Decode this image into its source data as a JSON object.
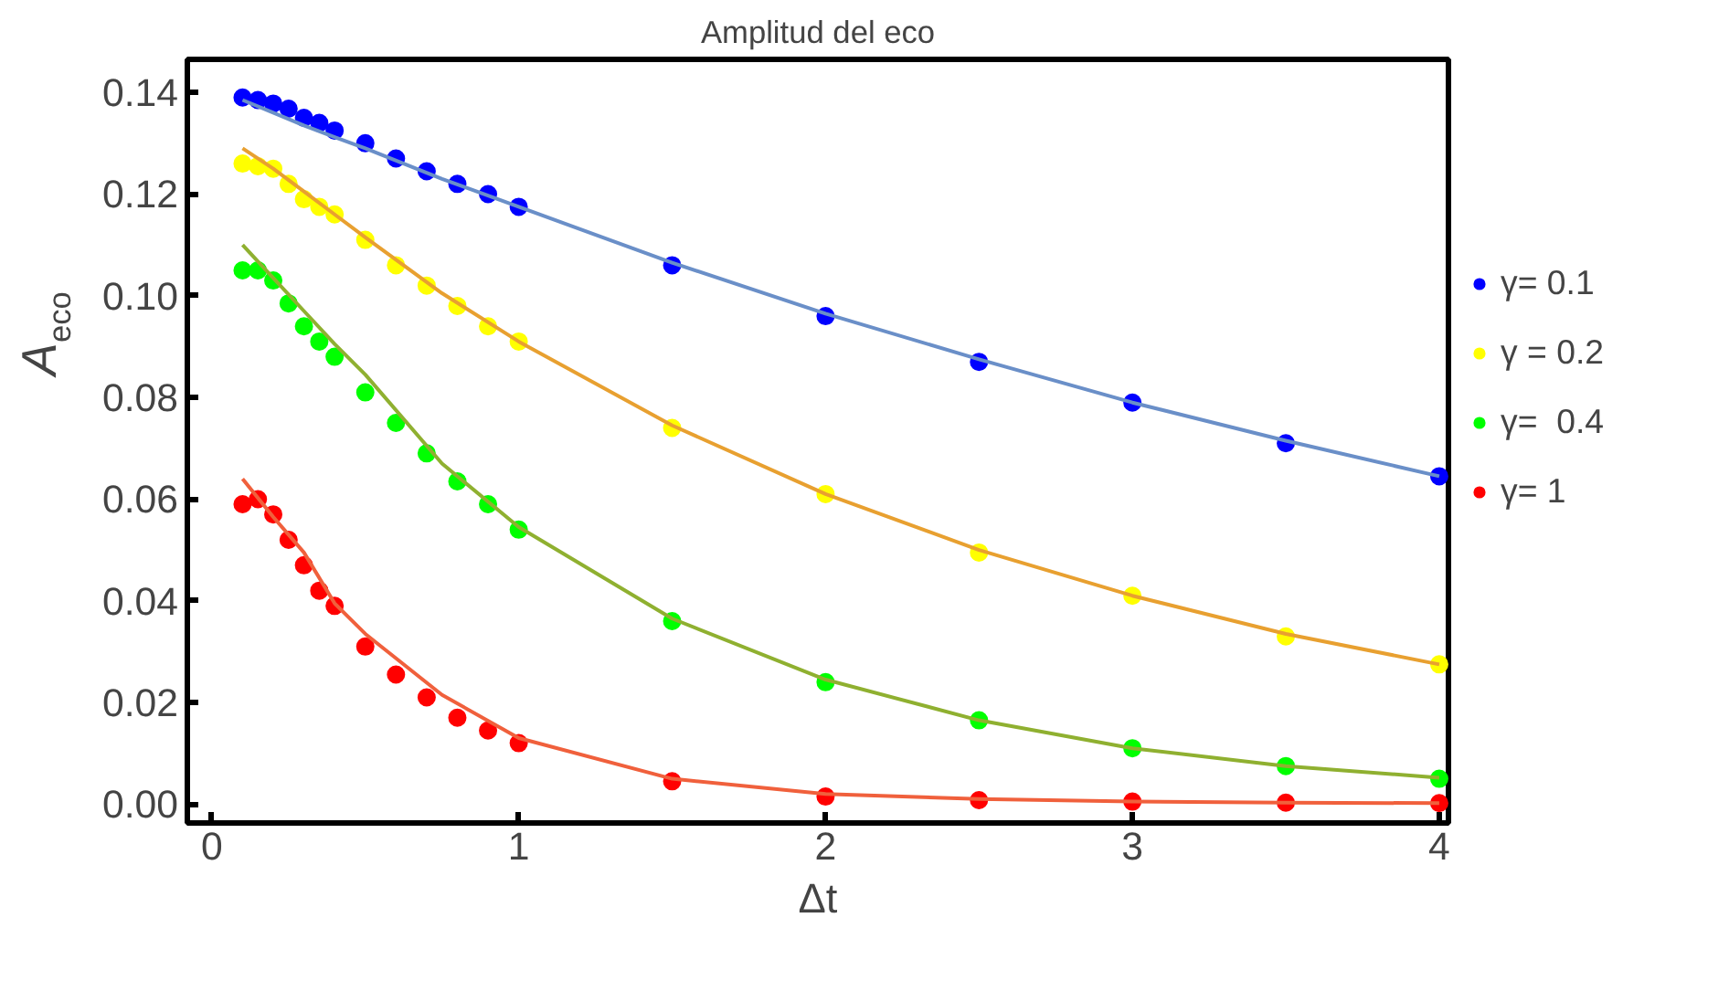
{
  "chart_data": {
    "type": "scatter",
    "title": "Amplitud del eco",
    "xlabel": "Δt",
    "ylabel": "A$_{eco}$",
    "x": [
      0.1,
      0.15,
      0.2,
      0.25,
      0.3,
      0.35,
      0.4,
      0.5,
      0.6,
      0.7,
      0.8,
      0.9,
      1.0,
      1.5,
      2,
      2.5,
      3,
      3.5,
      4
    ],
    "series": [
      {
        "name": "γ= 0.1",
        "color": "#0000ff",
        "values": [
          0.139,
          0.1385,
          0.1378,
          0.1368,
          0.135,
          0.134,
          0.1325,
          0.13,
          0.127,
          0.1245,
          0.122,
          0.12,
          0.1175,
          0.106,
          0.096,
          0.087,
          0.079,
          0.071,
          0.0645
        ]
      },
      {
        "name": "γ = 0.2",
        "color": "#ffff00",
        "values": [
          0.126,
          0.1255,
          0.125,
          0.122,
          0.119,
          0.1175,
          0.116,
          0.111,
          0.106,
          0.102,
          0.098,
          0.094,
          0.091,
          0.074,
          0.061,
          0.0495,
          0.041,
          0.033,
          0.0275
        ]
      },
      {
        "name": "γ=  0.4",
        "color": "#00ff00",
        "values": [
          0.105,
          0.105,
          0.103,
          0.0985,
          0.094,
          0.091,
          0.088,
          0.081,
          0.075,
          0.069,
          0.0635,
          0.059,
          0.054,
          0.036,
          0.024,
          0.0165,
          0.011,
          0.0075,
          0.005
        ]
      },
      {
        "name": "γ= 1",
        "color": "#ff0000",
        "values": [
          0.059,
          0.06,
          0.057,
          0.052,
          0.047,
          0.042,
          0.039,
          0.031,
          0.0255,
          0.021,
          0.017,
          0.0145,
          0.012,
          0.0045,
          0.0015,
          0.0008,
          0.0005,
          0.0003,
          0.0002
        ]
      },
      {
        "type": "line",
        "marker": "none",
        "color": "#6a8fc8",
        "x": [
          0.1,
          0.2,
          0.3,
          0.4,
          0.5,
          0.75,
          1,
          1.5,
          2,
          2.5,
          3,
          3.5,
          4
        ],
        "values": [
          0.1385,
          0.136,
          0.1335,
          0.1312,
          0.129,
          0.123,
          0.1175,
          0.1065,
          0.0965,
          0.0875,
          0.079,
          0.0715,
          0.0645
        ]
      },
      {
        "type": "line",
        "marker": "none",
        "color": "#e8a030",
        "x": [
          0.1,
          0.2,
          0.3,
          0.4,
          0.5,
          0.75,
          1,
          1.5,
          2,
          2.5,
          3,
          3.5,
          4
        ],
        "values": [
          0.129,
          0.125,
          0.1205,
          0.116,
          0.1115,
          0.1005,
          0.091,
          0.0745,
          0.061,
          0.05,
          0.041,
          0.0335,
          0.0275
        ]
      },
      {
        "type": "line",
        "marker": "none",
        "color": "#8fb030",
        "x": [
          0.1,
          0.2,
          0.3,
          0.4,
          0.5,
          0.75,
          1,
          1.5,
          2,
          2.5,
          3,
          3.5,
          4
        ],
        "values": [
          0.11,
          0.1035,
          0.097,
          0.0905,
          0.0845,
          0.067,
          0.0545,
          0.0365,
          0.0245,
          0.0165,
          0.011,
          0.0075,
          0.0052
        ]
      },
      {
        "type": "line",
        "marker": "none",
        "color": "#f0603c",
        "x": [
          0.1,
          0.2,
          0.3,
          0.4,
          0.5,
          0.75,
          1,
          1.5,
          2,
          2.5,
          3,
          3.5,
          4
        ],
        "values": [
          0.064,
          0.0565,
          0.0495,
          0.0395,
          0.0335,
          0.0215,
          0.013,
          0.005,
          0.002,
          0.001,
          0.0005,
          0.0003,
          0.0002
        ]
      }
    ],
    "xlim": [
      -0.08,
      4.03
    ],
    "ylim": [
      -0.0037,
      0.1465
    ],
    "xticks": [
      0,
      1,
      2,
      3,
      4
    ],
    "yticks": [
      {
        "value": 0,
        "label": "0.00"
      },
      {
        "value": 0.02,
        "label": "0.02"
      },
      {
        "value": 0.04,
        "label": "0.04"
      },
      {
        "value": 0.06,
        "label": "0.06"
      },
      {
        "value": 0.08,
        "label": "0.08"
      },
      {
        "value": 0.1,
        "label": "0.10"
      },
      {
        "value": 0.12,
        "label": "0.12"
      },
      {
        "value": 0.14,
        "label": "0.14"
      }
    ],
    "grid": false,
    "legend": "right",
    "marker": "circle"
  }
}
